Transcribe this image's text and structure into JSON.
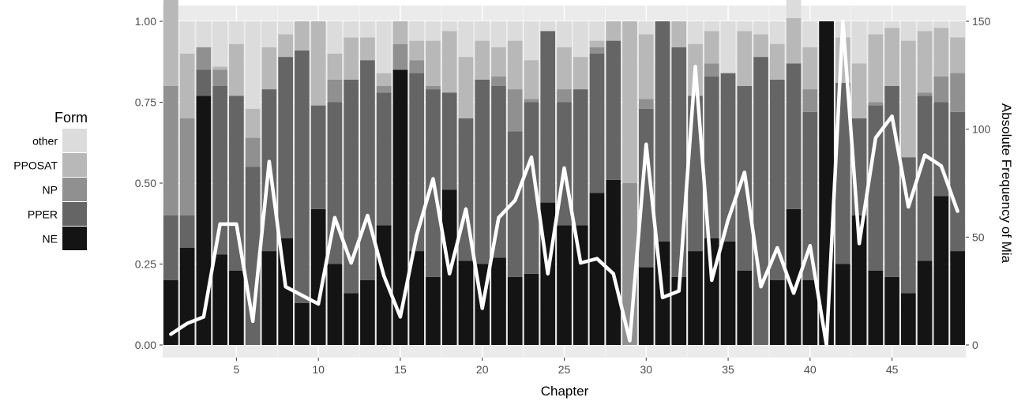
{
  "chart_data": {
    "type": "bar",
    "stacked": true,
    "normalized": true,
    "xlabel": "Chapter",
    "ylabel": "",
    "y2label": "Absolute Frequency of Mia",
    "xlim": [
      0.5,
      49.5
    ],
    "ylim": [
      0,
      1
    ],
    "y2lim": [
      0,
      150
    ],
    "xticks": [
      5,
      10,
      15,
      20,
      25,
      30,
      35,
      40,
      45
    ],
    "yticks": [
      "0.00",
      "0.25",
      "0.50",
      "0.75",
      "1.00"
    ],
    "y2ticks": [
      "0",
      "50",
      "100",
      "150"
    ],
    "grid": true,
    "legend": {
      "title": "Form",
      "position": "left",
      "entries": [
        "other",
        "PPOSAT",
        "NP",
        "PPER",
        "NE"
      ]
    },
    "colors": {
      "NE": "#141414",
      "PPER": "#656565",
      "NP": "#909090",
      "PPOSAT": "#b8b8b8",
      "other": "#dcdcdc",
      "line": "#ffffff",
      "panel": "#ebebeb",
      "grid": "#ffffff"
    },
    "categories": [
      1,
      2,
      3,
      4,
      5,
      6,
      7,
      8,
      9,
      10,
      11,
      12,
      13,
      14,
      15,
      16,
      17,
      18,
      19,
      20,
      21,
      22,
      23,
      24,
      25,
      26,
      27,
      28,
      29,
      30,
      31,
      32,
      33,
      34,
      35,
      36,
      37,
      38,
      39,
      40,
      41,
      42,
      43,
      44,
      45,
      46,
      47,
      48,
      49
    ],
    "series": [
      {
        "name": "NE",
        "values": [
          0.2,
          0.3,
          0.77,
          0.28,
          0.23,
          0.0,
          0.29,
          0.33,
          0.13,
          0.42,
          0.25,
          0.16,
          0.2,
          0.37,
          0.85,
          0.29,
          0.21,
          0.48,
          0.26,
          0.25,
          0.27,
          0.21,
          0.22,
          0.44,
          0.37,
          0.37,
          0.47,
          0.51,
          0.0,
          0.24,
          0.32,
          0.21,
          0.29,
          0.33,
          0.32,
          0.23,
          0.0,
          0.2,
          0.42,
          0.2,
          1.0,
          0.25,
          0.4,
          0.23,
          0.21,
          0.16,
          0.26,
          0.46,
          0.29
        ]
      },
      {
        "name": "PPER",
        "values": [
          0.2,
          0.1,
          0.08,
          0.52,
          0.54,
          0.55,
          0.5,
          0.56,
          0.78,
          0.32,
          0.5,
          0.66,
          0.68,
          0.41,
          0.0,
          0.55,
          0.58,
          0.3,
          0.44,
          0.57,
          0.53,
          0.45,
          0.53,
          0.53,
          0.38,
          0.42,
          0.43,
          0.43,
          0.0,
          0.49,
          0.68,
          0.71,
          0.48,
          0.5,
          0.52,
          0.57,
          0.89,
          0.62,
          0.45,
          0.52,
          0.0,
          0.56,
          0.3,
          0.51,
          0.59,
          0.42,
          0.51,
          0.29,
          0.43
        ]
      },
      {
        "name": "NP",
        "values": [
          0.4,
          0.3,
          0.07,
          0.05,
          0.0,
          0.09,
          0.0,
          0.0,
          0.0,
          0.0,
          0.07,
          0.0,
          0.0,
          0.02,
          0.08,
          0.04,
          0.01,
          0.0,
          0.0,
          0.0,
          0.03,
          0.13,
          0.01,
          0.0,
          0.04,
          0.0,
          0.02,
          0.0,
          0.5,
          0.03,
          0.0,
          0.0,
          0.0,
          0.04,
          0.0,
          0.0,
          0.0,
          0.0,
          0.0,
          0.07,
          0.0,
          0.0,
          0.0,
          0.01,
          0.0,
          0.0,
          0.01,
          0.08,
          0.12
        ]
      },
      {
        "name": "PPOSAT",
        "values": [
          0.4,
          0.2,
          0.0,
          0.01,
          0.16,
          0.09,
          0.13,
          0.07,
          0.09,
          0.26,
          0.08,
          0.13,
          0.07,
          0.04,
          0.07,
          0.06,
          0.14,
          0.19,
          0.19,
          0.12,
          0.09,
          0.15,
          0.12,
          0.0,
          0.13,
          0.1,
          0.02,
          0.06,
          0.5,
          0.2,
          0.0,
          0.08,
          0.16,
          0.1,
          0.0,
          0.17,
          0.07,
          0.11,
          0.14,
          0.13,
          0.0,
          0.14,
          0.17,
          0.21,
          0.18,
          0.36,
          0.19,
          0.15,
          0.11
        ]
      },
      {
        "name": "other",
        "values": [
          0.0,
          0.1,
          0.08,
          0.14,
          0.07,
          0.27,
          0.08,
          0.04,
          0.0,
          0.0,
          0.1,
          0.05,
          0.05,
          0.16,
          0.0,
          0.06,
          0.06,
          0.03,
          0.11,
          0.06,
          0.08,
          0.06,
          0.12,
          0.03,
          0.08,
          0.11,
          0.06,
          0.0,
          0.0,
          0.04,
          0.0,
          0.0,
          0.07,
          0.03,
          0.16,
          0.03,
          0.04,
          0.07,
          0.09,
          0.08,
          0.0,
          0.05,
          0.13,
          0.04,
          0.02,
          0.06,
          0.03,
          0.02,
          0.05
        ]
      }
    ],
    "line": {
      "name": "Absolute Frequency of Mia",
      "axis": "right",
      "values": [
        5,
        10,
        13,
        56,
        56,
        11,
        85,
        27,
        23,
        19,
        59,
        38,
        60,
        32,
        13,
        51,
        77,
        33,
        63,
        17,
        59,
        67,
        87,
        33,
        82,
        38,
        40,
        33,
        2,
        93,
        22,
        25,
        129,
        30,
        58,
        80,
        27,
        45,
        24,
        46,
        0,
        150,
        47,
        96,
        106,
        64,
        88,
        83,
        62
      ]
    }
  }
}
